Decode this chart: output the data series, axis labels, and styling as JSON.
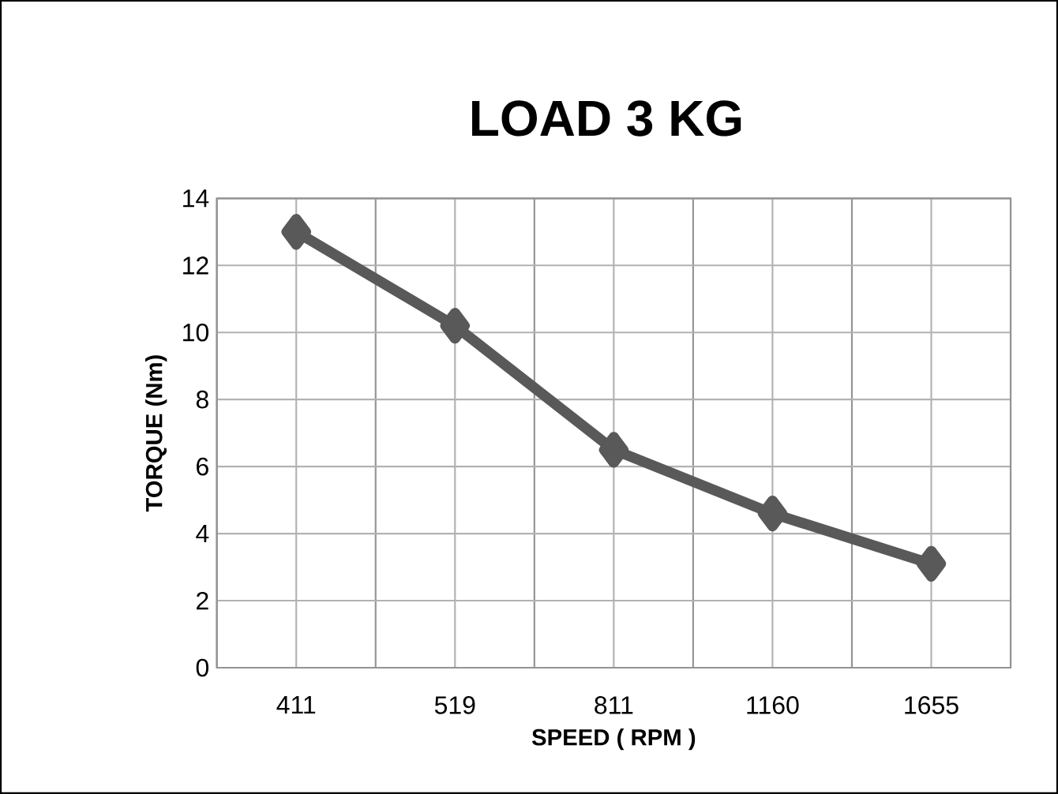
{
  "chart_data": {
    "type": "line",
    "title": "LOAD 3 KG",
    "xlabel": "SPEED ( RPM )",
    "ylabel": "TORQUE  (Nm)",
    "categories": [
      "411",
      "519",
      "811",
      "1160",
      "1655"
    ],
    "series": [
      {
        "color": "#595959",
        "values": [
          13.0,
          10.2,
          6.5,
          4.6,
          3.1
        ]
      }
    ],
    "ylim": [
      0,
      14
    ],
    "yticks": [
      0,
      2,
      4,
      6,
      8,
      10,
      12,
      14
    ],
    "grid": true,
    "marker": "diamond",
    "line_style": "solid"
  }
}
